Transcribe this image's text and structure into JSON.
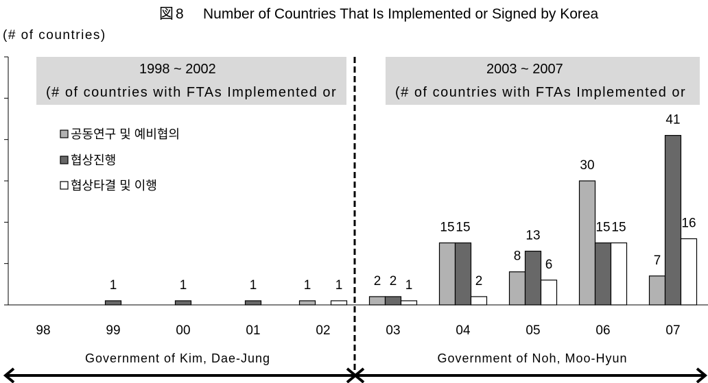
{
  "chart_data": {
    "type": "bar",
    "figure_label": "図8",
    "title": "Number of Countries That Is Implemented or Signed by Korea",
    "ylabel": "(# of countries)",
    "xlabel": "",
    "categories": [
      "98",
      "99",
      "00",
      "01",
      "02",
      "03",
      "04",
      "05",
      "06",
      "07"
    ],
    "series": [
      {
        "name": "공동연구 및 예비협의",
        "color": "#b2b2b2",
        "values": [
          0,
          0,
          0,
          0,
          1,
          2,
          15,
          8,
          30,
          7
        ]
      },
      {
        "name": "협상진행",
        "color": "#686868",
        "values": [
          0,
          1,
          1,
          1,
          0,
          2,
          15,
          13,
          15,
          41
        ]
      },
      {
        "name": "협상타결 및 이행",
        "color": "#ffffff",
        "values": [
          0,
          0,
          0,
          0,
          1,
          1,
          2,
          6,
          15,
          16
        ]
      }
    ],
    "ylim": [
      0,
      60
    ],
    "ytick_step": 10,
    "ytick_labels_shown": false,
    "grid": false,
    "legend": "upper-left",
    "data_labels": true,
    "annotations": {
      "box_color": "#d9d9d9",
      "periods": [
        {
          "range": "1998 ~ 2002",
          "note": "(# of countries with FTAs Implemented or"
        },
        {
          "range": "2003 ~ 2007",
          "note": "(# of countries with FTAs Implemented or"
        }
      ],
      "governments": [
        "Government of Kim, Dae-Jung",
        "Government of Noh, Moo-Hyun"
      ]
    }
  }
}
